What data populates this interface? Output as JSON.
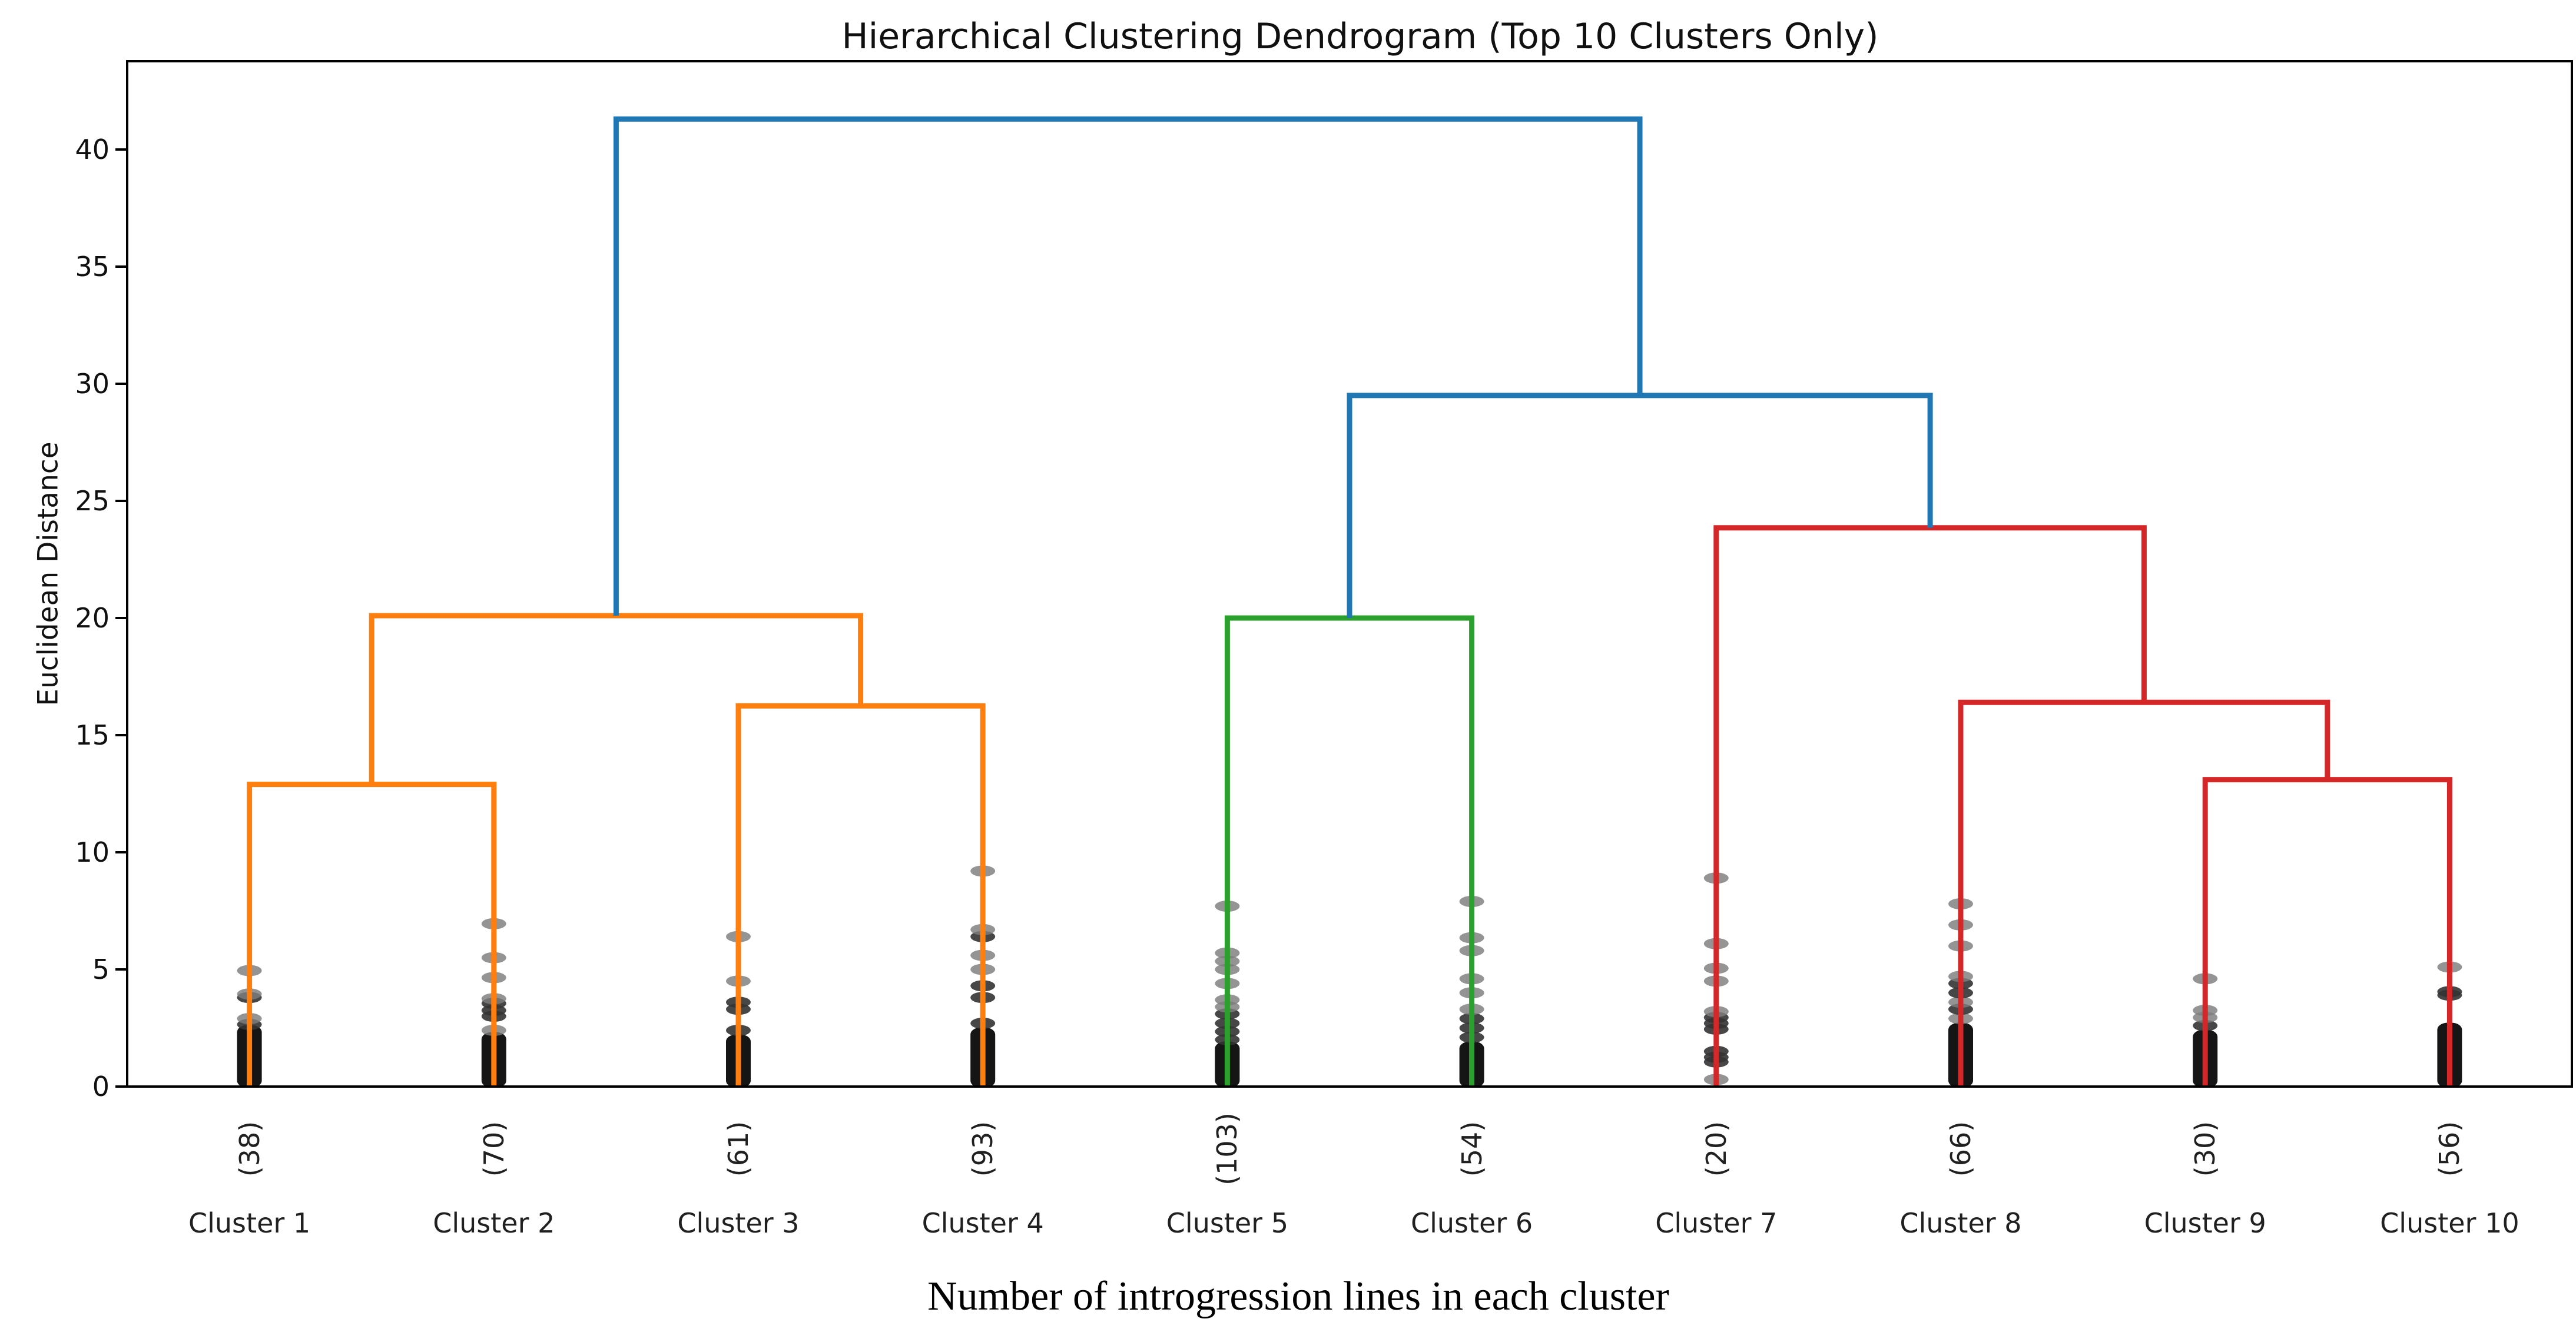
{
  "chart_data": {
    "type": "dendrogram",
    "title": "Hierarchical Clustering Dendrogram (Top 10 Clusters Only)",
    "ylabel": "Euclidean Distance",
    "xlabel": "Number of introgression lines in each cluster",
    "ylim": [
      0,
      43.77
    ],
    "xlim": [
      0,
      100
    ],
    "yticks": [
      0,
      5,
      10,
      15,
      20,
      25,
      30,
      35,
      40
    ],
    "grid": false,
    "legend": "none",
    "colors": {
      "blue": "#1f77b4",
      "orange": "#ff7f0e",
      "green": "#2ca02c",
      "red": "#d62728",
      "frame": "#000000",
      "dot_gray": "#7d7d7d",
      "dot_dark": "#333333",
      "dot_dense": "#0b0b0b",
      "text": "#101010"
    },
    "leaves": [
      {
        "label": "Cluster 1",
        "count": 38,
        "count_label": "(38)",
        "x": 5,
        "color_key": "orange",
        "dots": {
          "dense_top": 2.4,
          "points": [
            {
              "v": 2.65,
              "s": "dark"
            },
            {
              "v": 2.9,
              "s": "gray"
            },
            {
              "v": 3.8,
              "s": "dark"
            },
            {
              "v": 3.95,
              "s": "gray"
            },
            {
              "v": 4.95,
              "s": "gray"
            }
          ]
        }
      },
      {
        "label": "Cluster 2",
        "count": 70,
        "count_label": "(70)",
        "x": 15,
        "color_key": "orange",
        "dots": {
          "dense_top": 2.1,
          "points": [
            {
              "v": 2.4,
              "s": "gray"
            },
            {
              "v": 3.0,
              "s": "dark"
            },
            {
              "v": 3.25,
              "s": "dark"
            },
            {
              "v": 3.55,
              "s": "dark"
            },
            {
              "v": 3.75,
              "s": "gray"
            },
            {
              "v": 4.65,
              "s": "gray"
            },
            {
              "v": 5.5,
              "s": "gray"
            },
            {
              "v": 6.95,
              "s": "gray"
            }
          ]
        }
      },
      {
        "label": "Cluster 3",
        "count": 61,
        "count_label": "(61)",
        "x": 25,
        "color_key": "orange",
        "dots": {
          "dense_top": 2.0,
          "points": [
            {
              "v": 2.4,
              "s": "dark"
            },
            {
              "v": 3.3,
              "s": "dark"
            },
            {
              "v": 3.6,
              "s": "dark"
            },
            {
              "v": 4.5,
              "s": "gray"
            },
            {
              "v": 6.4,
              "s": "gray"
            }
          ]
        }
      },
      {
        "label": "Cluster 4",
        "count": 93,
        "count_label": "(93)",
        "x": 35,
        "color_key": "orange",
        "dots": {
          "dense_top": 2.3,
          "points": [
            {
              "v": 2.7,
              "s": "dark"
            },
            {
              "v": 3.8,
              "s": "dark"
            },
            {
              "v": 4.3,
              "s": "dark"
            },
            {
              "v": 5.0,
              "s": "gray"
            },
            {
              "v": 5.6,
              "s": "gray"
            },
            {
              "v": 6.4,
              "s": "dark"
            },
            {
              "v": 6.7,
              "s": "gray"
            },
            {
              "v": 9.2,
              "s": "gray"
            }
          ]
        }
      },
      {
        "label": "Cluster 5",
        "count": 103,
        "count_label": "(103)",
        "x": 45,
        "color_key": "green",
        "dots": {
          "dense_top": 1.7,
          "points": [
            {
              "v": 2.0,
              "s": "dark"
            },
            {
              "v": 2.35,
              "s": "dark"
            },
            {
              "v": 2.7,
              "s": "dark"
            },
            {
              "v": 3.1,
              "s": "dark"
            },
            {
              "v": 3.4,
              "s": "gray"
            },
            {
              "v": 3.7,
              "s": "gray"
            },
            {
              "v": 4.4,
              "s": "gray"
            },
            {
              "v": 5.0,
              "s": "gray"
            },
            {
              "v": 5.35,
              "s": "gray"
            },
            {
              "v": 5.7,
              "s": "gray"
            },
            {
              "v": 7.7,
              "s": "gray"
            }
          ]
        }
      },
      {
        "label": "Cluster 6",
        "count": 54,
        "count_label": "(54)",
        "x": 55,
        "color_key": "green",
        "dots": {
          "dense_top": 1.7,
          "points": [
            {
              "v": 2.1,
              "s": "dark"
            },
            {
              "v": 2.5,
              "s": "dark"
            },
            {
              "v": 2.9,
              "s": "dark"
            },
            {
              "v": 3.3,
              "s": "gray"
            },
            {
              "v": 4.0,
              "s": "gray"
            },
            {
              "v": 4.6,
              "s": "gray"
            },
            {
              "v": 5.8,
              "s": "gray"
            },
            {
              "v": 6.35,
              "s": "gray"
            },
            {
              "v": 7.9,
              "s": "gray"
            }
          ]
        }
      },
      {
        "label": "Cluster 7",
        "count": 20,
        "count_label": "(20)",
        "x": 65,
        "color_key": "red",
        "dots": {
          "dense_top": 0,
          "points": [
            {
              "v": 0.3,
              "s": "gray"
            },
            {
              "v": 1.05,
              "s": "dark"
            },
            {
              "v": 1.25,
              "s": "dark"
            },
            {
              "v": 1.5,
              "s": "dark"
            },
            {
              "v": 2.45,
              "s": "dark"
            },
            {
              "v": 2.7,
              "s": "dark"
            },
            {
              "v": 2.95,
              "s": "dark"
            },
            {
              "v": 3.2,
              "s": "gray"
            },
            {
              "v": 4.5,
              "s": "gray"
            },
            {
              "v": 5.05,
              "s": "gray"
            },
            {
              "v": 6.1,
              "s": "gray"
            },
            {
              "v": 8.9,
              "s": "gray"
            }
          ]
        }
      },
      {
        "label": "Cluster 8",
        "count": 66,
        "count_label": "(66)",
        "x": 75,
        "color_key": "red",
        "dots": {
          "dense_top": 2.5,
          "points": [
            {
              "v": 2.9,
              "s": "gray"
            },
            {
              "v": 3.3,
              "s": "dark"
            },
            {
              "v": 3.6,
              "s": "gray"
            },
            {
              "v": 4.0,
              "s": "dark"
            },
            {
              "v": 4.4,
              "s": "dark"
            },
            {
              "v": 4.7,
              "s": "gray"
            },
            {
              "v": 6.0,
              "s": "gray"
            },
            {
              "v": 6.9,
              "s": "gray"
            },
            {
              "v": 7.8,
              "s": "gray"
            }
          ]
        }
      },
      {
        "label": "Cluster 9",
        "count": 30,
        "count_label": "(30)",
        "x": 85,
        "color_key": "red",
        "dots": {
          "dense_top": 2.2,
          "points": [
            {
              "v": 2.6,
              "s": "dark"
            },
            {
              "v": 2.95,
              "s": "gray"
            },
            {
              "v": 3.25,
              "s": "gray"
            },
            {
              "v": 4.6,
              "s": "gray"
            }
          ]
        }
      },
      {
        "label": "Cluster 10",
        "count": 56,
        "count_label": "(56)",
        "x": 95,
        "color_key": "red",
        "dots": {
          "dense_top": 2.5,
          "points": [
            {
              "v": 3.9,
              "s": "dark"
            },
            {
              "v": 4.05,
              "s": "dark"
            },
            {
              "v": 5.1,
              "s": "gray"
            }
          ]
        }
      }
    ],
    "links": [
      {
        "x1": 5,
        "b1": 0,
        "x2": 15,
        "b2": 0,
        "h": 12.9,
        "color_key": "orange"
      },
      {
        "x1": 25,
        "b1": 0,
        "x2": 35,
        "b2": 0,
        "h": 16.25,
        "color_key": "orange"
      },
      {
        "x1": 10,
        "b1": 12.9,
        "x2": 30,
        "b2": 16.25,
        "h": 20.1,
        "color_key": "orange"
      },
      {
        "x1": 45,
        "b1": 0,
        "x2": 55,
        "b2": 0,
        "h": 20.0,
        "color_key": "green"
      },
      {
        "x1": 85,
        "b1": 0,
        "x2": 95,
        "b2": 0,
        "h": 13.1,
        "color_key": "red"
      },
      {
        "x1": 75,
        "b1": 0,
        "x2": 90,
        "b2": 13.1,
        "h": 16.4,
        "color_key": "red"
      },
      {
        "x1": 65,
        "b1": 0,
        "x2": 82.5,
        "b2": 16.4,
        "h": 23.85,
        "color_key": "red"
      },
      {
        "x1": 50,
        "b1": 20.0,
        "x2": 73.75,
        "b2": 23.85,
        "h": 29.5,
        "color_key": "blue"
      },
      {
        "x1": 20,
        "b1": 20.1,
        "x2": 61.875,
        "b2": 29.5,
        "h": 41.3,
        "color_key": "blue"
      }
    ]
  }
}
